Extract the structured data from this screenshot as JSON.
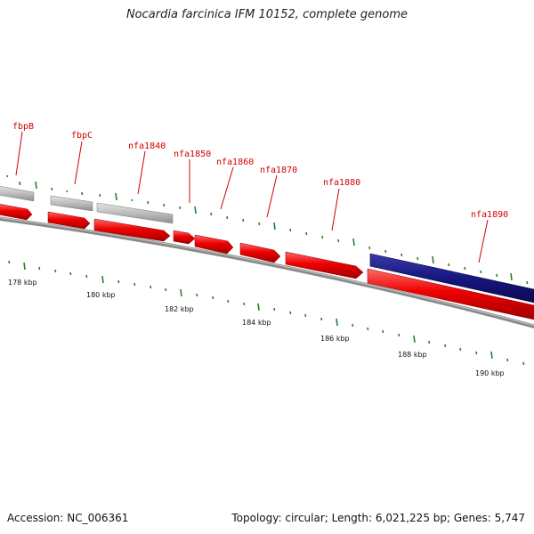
{
  "title": "Nocardia farcinica IFM 10152, complete genome",
  "footer": {
    "accession": "Accession: NC_006361",
    "summary": "Topology: circular; Length: 6,021,225 bp; Genes: 5,747"
  },
  "colors": {
    "cds_forward": "#ee0000",
    "gene_gray": "#b8b8b8",
    "highlight_gene": "#1a1a80",
    "backbone": "#888888",
    "tick": "#2e7d2e",
    "label": "#d40000"
  },
  "ruler": {
    "unit": "kbp",
    "ticks": [
      {
        "kbp": 178,
        "label": "178 kbp"
      },
      {
        "kbp": 180,
        "label": "180 kbp"
      },
      {
        "kbp": 182,
        "label": "182 kbp"
      },
      {
        "kbp": 184,
        "label": "184 kbp"
      },
      {
        "kbp": 186,
        "label": "186 kbp"
      },
      {
        "kbp": 188,
        "label": "188 kbp"
      },
      {
        "kbp": 190,
        "label": "190 kbp"
      }
    ]
  },
  "gene_labels": [
    "fbpB",
    "fbpC",
    "nfa1840",
    "nfa1850",
    "nfa1860",
    "nfa1870",
    "nfa1880",
    "nfa1890"
  ]
}
